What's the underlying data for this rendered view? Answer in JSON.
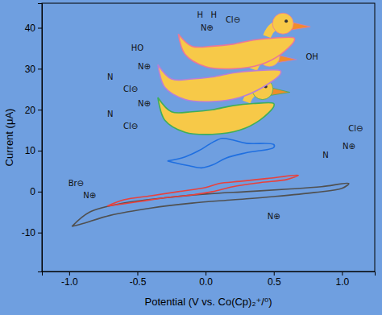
{
  "chart_data": {
    "type": "line",
    "x_label": "Potential (V vs. Co(Cp)₂⁺/⁰)",
    "y_label": "Current (μA)",
    "xlim": [
      -1.2,
      1.24
    ],
    "ylim": [
      -19.5,
      46
    ],
    "xticks": [
      {
        "value": -1,
        "label": "-1.0"
      },
      {
        "value": -0.5,
        "label": "-0.5"
      },
      {
        "value": 0,
        "label": "0.0"
      },
      {
        "value": 0.5,
        "label": "0.5"
      },
      {
        "value": 1,
        "label": "1.0"
      }
    ],
    "yticks": [
      -10,
      0,
      10,
      20,
      30,
      40
    ],
    "grid": false,
    "series": [
      {
        "color": "#505050",
        "line_style": "solid",
        "x": [
          -0.98,
          -0.85,
          -0.6,
          -0.3,
          0,
          0.3,
          0.6,
          0.85,
          1.05,
          1.0,
          0.8,
          0.5,
          0.2,
          -0.1,
          -0.4,
          -0.7,
          -0.9,
          -0.98
        ],
        "values": [
          -8.5,
          -5,
          -2.8,
          -1.5,
          -0.6,
          0,
          0.6,
          1.2,
          2,
          0.8,
          -0.2,
          -1.2,
          -2,
          -2.8,
          -4,
          -5.8,
          -7.8,
          -8.5
        ]
      },
      {
        "color": "#e8413c",
        "line_style": "solid",
        "x": [
          -0.72,
          -0.6,
          -0.4,
          -0.2,
          0,
          0.1,
          0.25,
          0.45,
          0.68,
          0.6,
          0.4,
          0.2,
          0.05,
          -0.1,
          -0.3,
          -0.5,
          -0.72
        ],
        "values": [
          -3.5,
          -2,
          -1,
          0,
          1,
          2,
          2.5,
          3.2,
          4,
          3,
          2.2,
          1.2,
          0,
          -0.8,
          -1.5,
          -2.5,
          -3.5
        ]
      },
      {
        "color": "#1f6fe0",
        "line_style": "solid",
        "x": [
          -0.28,
          -0.15,
          -0.05,
          0.05,
          0.12,
          0.2,
          0.3,
          0.5,
          0.5,
          0.3,
          0.15,
          0.05,
          -0.03,
          -0.12,
          -0.22,
          -0.28
        ],
        "values": [
          7.5,
          8.5,
          10,
          12,
          13,
          12.6,
          11.8,
          11.5,
          10.8,
          9.5,
          8.2,
          6.5,
          5.8,
          6.3,
          7,
          7.5
        ]
      },
      {
        "color": "#3fae5a",
        "line_style": "solid",
        "marker": "duck",
        "x": [
          -0.35,
          -0.25,
          -0.1,
          0.05,
          0.2,
          0.35,
          0.5,
          0.5,
          0.4,
          0.25,
          0.05,
          -0.15,
          -0.3,
          -0.35
        ],
        "values": [
          23,
          19.5,
          19.5,
          20,
          21,
          21.5,
          21.5,
          20.8,
          17.5,
          15,
          14,
          14.5,
          17.5,
          23
        ]
      },
      {
        "color": "#b77fd6",
        "line_style": "solid",
        "marker": "duck",
        "x": [
          -0.35,
          -0.25,
          -0.1,
          0.05,
          0.2,
          0.35,
          0.55,
          0.55,
          0.42,
          0.25,
          0.05,
          -0.15,
          -0.3,
          -0.35
        ],
        "values": [
          31,
          27.5,
          27.5,
          28,
          29,
          29.5,
          29.5,
          28.8,
          25.5,
          23,
          22,
          22.5,
          25.5,
          31
        ]
      },
      {
        "color": "#e8789a",
        "line_style": "solid",
        "marker": "duck",
        "x": [
          -0.2,
          -0.1,
          0.05,
          0.2,
          0.35,
          0.5,
          0.65,
          0.65,
          0.55,
          0.4,
          0.2,
          0,
          -0.15,
          -0.2
        ],
        "values": [
          38.5,
          35.5,
          35.5,
          36,
          37,
          37.5,
          37.5,
          36.8,
          33.5,
          31,
          30,
          30.5,
          33.5,
          38.5
        ]
      }
    ],
    "annotations": [
      {
        "text": "H",
        "x": -0.04,
        "y": 43.2
      },
      {
        "text": "H",
        "x": 0.06,
        "y": 43.2
      },
      {
        "text": "N⊕",
        "x": 0.01,
        "y": 40
      },
      {
        "text": "HO",
        "x": -0.5,
        "y": 35
      },
      {
        "text": "OH",
        "x": 0.78,
        "y": 33
      },
      {
        "text": "Cl⊖",
        "x": 0.2,
        "y": 42
      },
      {
        "text": "N⊕",
        "x": -0.45,
        "y": 30.5
      },
      {
        "text": "N",
        "x": -0.7,
        "y": 28
      },
      {
        "text": "Cl⊖",
        "x": -0.55,
        "y": 25
      },
      {
        "text": "N⊕",
        "x": -0.45,
        "y": 21.5
      },
      {
        "text": "N",
        "x": -0.7,
        "y": 19
      },
      {
        "text": "Cl⊖",
        "x": -0.55,
        "y": 16
      },
      {
        "text": "N",
        "x": 0.88,
        "y": 9
      },
      {
        "text": "N⊕",
        "x": 1.05,
        "y": 11
      },
      {
        "text": "Cl⊖",
        "x": 1.1,
        "y": 15.5
      },
      {
        "text": "N⊕",
        "x": -0.85,
        "y": -1
      },
      {
        "text": "Br⊖",
        "x": -0.95,
        "y": 2
      },
      {
        "text": "N⊕",
        "x": 0.5,
        "y": -6
      }
    ]
  }
}
